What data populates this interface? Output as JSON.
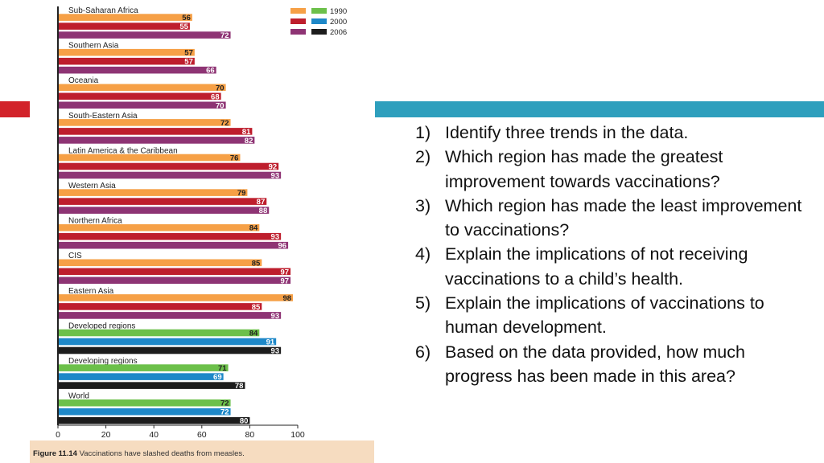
{
  "figure_caption": {
    "label": "Figure 11.14",
    "text": "Vaccinations have slashed deaths from measles."
  },
  "questions": [
    {
      "num": "1)",
      "text": "Identify three trends in the data."
    },
    {
      "num": "2)",
      "text": "Which region has made the greatest improvement towards vaccinations?"
    },
    {
      "num": "3)",
      "text": "Which region has made the least improvement to vaccinations?"
    },
    {
      "num": "4)",
      "text": "Explain the implications of not receiving vaccinations to a child’s health."
    },
    {
      "num": "5)",
      "text": "Explain the implications of vaccinations to human development."
    },
    {
      "num": "6)",
      "text": "Based on the data provided, how much progress has been made in this area?"
    }
  ],
  "colors": {
    "y1990_regions": "#f6a046",
    "y2000_regions": "#be1e2d",
    "y2006_regions": "#8e3474",
    "y1990_aggregate": "#6cc04a",
    "y2000_aggregate": "#1e88c8",
    "y2006_aggregate": "#1c1c1c",
    "accent_red": "#d2232a",
    "accent_teal": "#2e9fbd"
  },
  "chart_data": {
    "type": "bar",
    "orientation": "horizontal",
    "legend": {
      "position": "top-right",
      "entries": [
        "1990",
        "2000",
        "2006"
      ]
    },
    "xlim": [
      0,
      100
    ],
    "xticks": [
      "0",
      "20",
      "40",
      "60",
      "80",
      "100"
    ],
    "groups": [
      {
        "name": "Sub-Saharan Africa",
        "values": [
          56,
          55,
          72
        ]
      },
      {
        "name": "Southern Asia",
        "values": [
          57,
          57,
          66
        ]
      },
      {
        "name": "Oceania",
        "values": [
          70,
          68,
          70
        ]
      },
      {
        "name": "South-Eastern Asia",
        "values": [
          72,
          81,
          82
        ]
      },
      {
        "name": "Latin America & the Caribbean",
        "values": [
          76,
          92,
          93
        ]
      },
      {
        "name": "Western Asia",
        "values": [
          79,
          87,
          88
        ]
      },
      {
        "name": "Northern Africa",
        "values": [
          84,
          93,
          96
        ]
      },
      {
        "name": "CIS",
        "values": [
          85,
          97,
          97
        ]
      },
      {
        "name": "Eastern Asia",
        "values": [
          98,
          85,
          93
        ]
      },
      {
        "name": "Developed regions",
        "values": [
          84,
          91,
          93
        ],
        "aggregate": true
      },
      {
        "name": "Developing regions",
        "values": [
          71,
          69,
          78
        ],
        "aggregate": true
      },
      {
        "name": "World",
        "values": [
          72,
          72,
          80
        ],
        "aggregate": true
      }
    ]
  }
}
